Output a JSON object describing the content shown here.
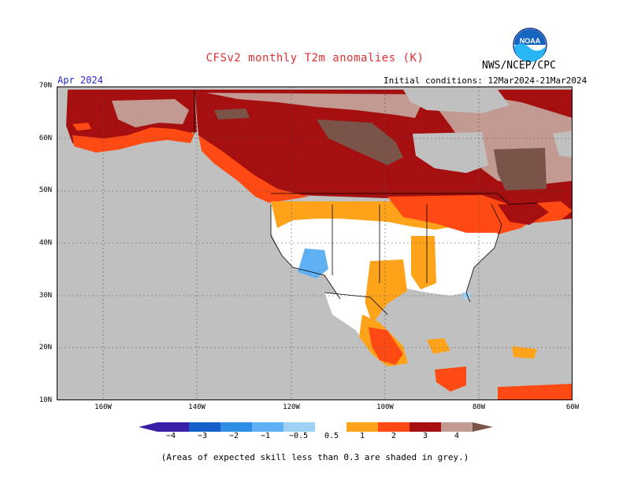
{
  "title": "CFSv2 monthly T2m anomalies (K)",
  "agency": "NWS/NCEP/CPC",
  "logo_text": "NOAA",
  "month": "Apr 2024",
  "initial_conditions": "Initial conditions: 12Mar2024-21Mar2024",
  "lat_labels": [
    "70N",
    "60N",
    "50N",
    "40N",
    "30N",
    "20N",
    "10N"
  ],
  "lon_labels": [
    "160W",
    "140W",
    "120W",
    "100W",
    "80W",
    "60W"
  ],
  "colorbar": {
    "labels": [
      "−4",
      "−3",
      "−2",
      "−1",
      "−0.5",
      "0.5",
      "1",
      "2",
      "3",
      "4"
    ],
    "colors": [
      "#3a1fa8",
      "#1560c8",
      "#2e8ee6",
      "#5fb0f2",
      "#9fd0f6",
      "#ffffff",
      "#ffa31a",
      "#ff4a14",
      "#e81e10",
      "#a50f0f",
      "#c39a92",
      "#7a5448"
    ]
  },
  "footnote": "(Areas of expected skill less than 0.3 are shaded in grey.)",
  "colors": {
    "ocean_grey": "#c0c0c0",
    "neutral": "#ffffff",
    "orange": "#ffa31a",
    "red": "#ff4a14",
    "dark_red": "#a50f0f",
    "deep_red": "#e81e10",
    "tan": "#c39a92",
    "brown": "#7a5448",
    "light_blue": "#5fb0f2"
  }
}
